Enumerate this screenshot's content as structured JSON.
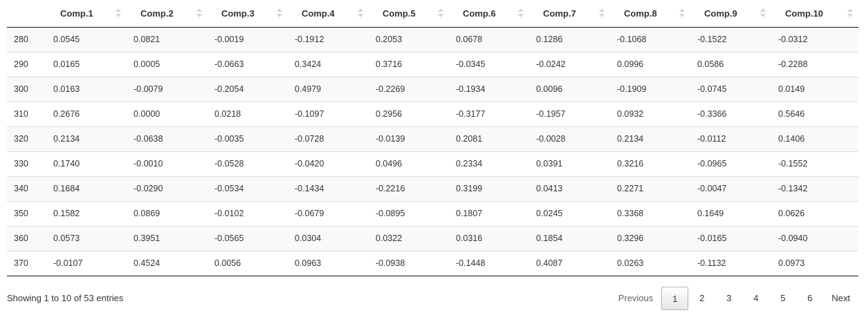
{
  "table": {
    "columns": [
      "Comp.1",
      "Comp.2",
      "Comp.3",
      "Comp.4",
      "Comp.5",
      "Comp.6",
      "Comp.7",
      "Comp.8",
      "Comp.9",
      "Comp.10"
    ],
    "rows": [
      {
        "name": "280",
        "values": [
          "0.0545",
          "0.0821",
          "-0.0019",
          "-0.1912",
          "0.2053",
          "0.0678",
          "0.1286",
          "-0.1068",
          "-0.1522",
          "-0.0312"
        ]
      },
      {
        "name": "290",
        "values": [
          "0.0165",
          "0.0005",
          "-0.0663",
          "0.3424",
          "0.3716",
          "-0.0345",
          "-0.0242",
          "0.0996",
          "0.0586",
          "-0.2288"
        ]
      },
      {
        "name": "300",
        "values": [
          "0.0163",
          "-0.0079",
          "-0.2054",
          "0.4979",
          "-0.2269",
          "-0.1934",
          "0.0096",
          "-0.1909",
          "-0.0745",
          "0.0149"
        ]
      },
      {
        "name": "310",
        "values": [
          "0.2676",
          "0.0000",
          "0.0218",
          "-0.1097",
          "0.2956",
          "-0.3177",
          "-0.1957",
          "0.0932",
          "-0.3366",
          "0.5646"
        ]
      },
      {
        "name": "320",
        "values": [
          "0.2134",
          "-0.0638",
          "-0.0035",
          "-0.0728",
          "-0.0139",
          "0.2081",
          "-0.0028",
          "0.2134",
          "-0.0112",
          "0.1406"
        ]
      },
      {
        "name": "330",
        "values": [
          "0.1740",
          "-0.0010",
          "-0.0528",
          "-0.0420",
          "0.0496",
          "0.2334",
          "0.0391",
          "0.3216",
          "-0.0965",
          "-0.1552"
        ]
      },
      {
        "name": "340",
        "values": [
          "0.1684",
          "-0.0290",
          "-0.0534",
          "-0.1434",
          "-0.2216",
          "0.3199",
          "0.0413",
          "0.2271",
          "-0.0047",
          "-0.1342"
        ]
      },
      {
        "name": "350",
        "values": [
          "0.1582",
          "0.0869",
          "-0.0102",
          "-0.0679",
          "-0.0895",
          "0.1807",
          "0.0245",
          "0.3368",
          "0.1649",
          "0.0626"
        ]
      },
      {
        "name": "360",
        "values": [
          "0.0573",
          "0.3951",
          "-0.0565",
          "0.0304",
          "0.0322",
          "0.0316",
          "0.1854",
          "0.3296",
          "-0.0165",
          "-0.0940"
        ]
      },
      {
        "name": "370",
        "values": [
          "-0.0107",
          "0.4524",
          "0.0056",
          "0.0963",
          "-0.0938",
          "-0.1448",
          "0.4087",
          "0.0263",
          "-0.1132",
          "0.0973"
        ]
      }
    ]
  },
  "footer": {
    "info": "Showing 1 to 10 of 53 entries",
    "previous": "Previous",
    "next": "Next",
    "pages": [
      "1",
      "2",
      "3",
      "4",
      "5",
      "6"
    ],
    "current_page": "1"
  }
}
